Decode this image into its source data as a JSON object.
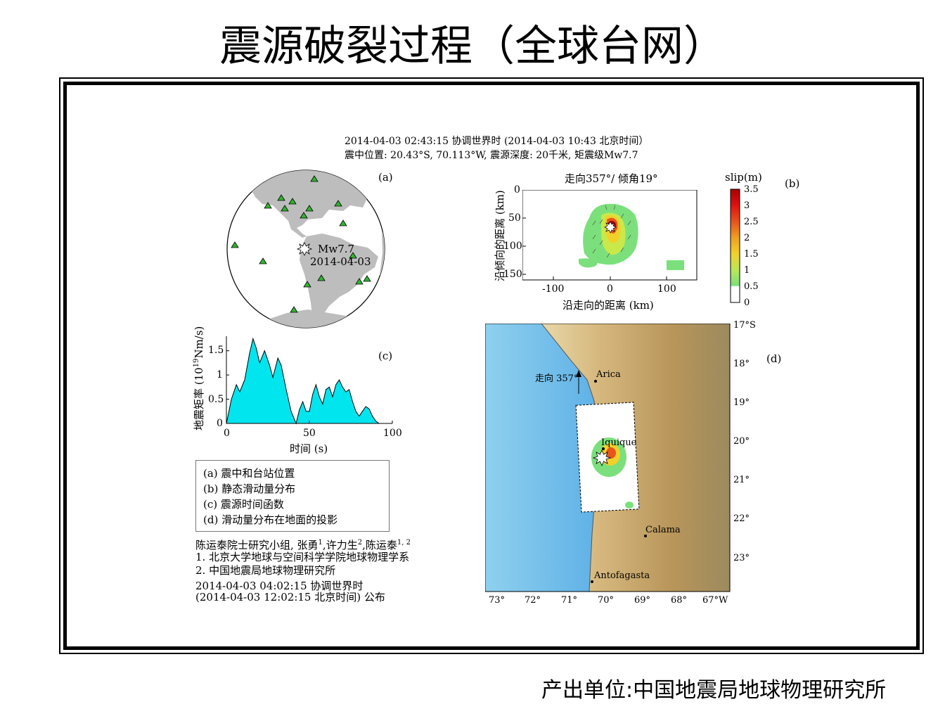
{
  "title": "震源破裂过程（全球台网）",
  "footer": "产出单位:中国地震局地球物理研究所",
  "header": {
    "line1": "2014-04-03 02:43:15 协调世界时 (2014-04-03 10:43 北京时间）",
    "line2": "震中位置: 20.43°S, 70.113°W, 震源深度: 20千米, 矩震级Mw7.7"
  },
  "panel_a": {
    "label": "(a)",
    "event_mag": "Mw7.7",
    "event_date": "2014-04-03",
    "colors": {
      "land": "#bdbdbd",
      "station": "#2fb52f"
    }
  },
  "panel_b": {
    "label": "(b)",
    "title": "走向357°/ 倾角19°",
    "colorbar_title": "slip(m)",
    "colorbar_ticks": [
      "3.5",
      "3",
      "2.5",
      "2",
      "1.5",
      "1",
      "0.5",
      "0"
    ],
    "xlabel": "沿走向的距离 (km)",
    "ylabel": "沿倾向的距离 (km)",
    "xticks": [
      "-100",
      "0",
      "100"
    ],
    "yticks": [
      "0",
      "50",
      "100",
      "150"
    ],
    "xlim": [
      -155,
      155
    ],
    "ylim": [
      0,
      160
    ],
    "colors": {
      "low": "#7be07b",
      "mid": "#f2d02a",
      "high": "#e8541c",
      "peak": "#a80000"
    }
  },
  "panel_c": {
    "label": "(c)",
    "xlabel": "时间 (s)",
    "ylabel": "地震矩率 (10",
    "ylabel_sup": "19",
    "ylabel_tail": "Nm/s)",
    "xticks": [
      "0",
      "50",
      "100"
    ],
    "yticks": [
      "0",
      "0.5",
      "1",
      "1.5"
    ],
    "fill_color": "#00e5ee"
  },
  "panel_d": {
    "label": "(d)",
    "strike_label": "走向 357°",
    "cities": [
      "Arica",
      "Iquique",
      "Calama",
      "Antofagasta"
    ],
    "lat_ticks": [
      "17°S",
      "18°",
      "19°",
      "20°",
      "21°",
      "22°",
      "23°"
    ],
    "lon_ticks": [
      "73°",
      "72°",
      "71°",
      "70°",
      "69°",
      "68°",
      "67°W"
    ]
  },
  "legend": [
    "(a) 震中和台站位置",
    "(b) 静态滑动量分布",
    "(c) 震源时间函数",
    "(d) 滑动量分布在地面的投影"
  ],
  "credits": {
    "line1_a": "陈运泰院士研究小组, 张勇",
    "sup1": "1",
    "line1_b": ",许力生",
    "sup2": "2",
    "line1_c": ",陈运泰",
    "sup3": "1, 2",
    "line2": "1. 北京大学地球与空间科学学院地球物理学系",
    "line3": "2. 中国地震局地球物理研究所",
    "line4": "2014-04-03 04:02:15 协调世界时",
    "line5": "(2014-04-03 12:02:15 北京时间)  公布"
  },
  "chart_data": [
    {
      "type": "area",
      "panel": "c",
      "x": [
        0,
        3,
        6,
        8,
        11,
        14,
        16,
        18,
        20,
        23,
        26,
        28,
        31,
        33,
        36,
        39,
        42,
        44,
        46,
        48,
        50,
        52,
        54,
        56,
        58,
        60,
        62,
        64,
        66,
        68,
        70,
        72,
        74,
        76,
        78,
        80,
        82,
        84,
        86,
        88,
        90,
        92
      ],
      "y": [
        0,
        0.5,
        0.8,
        0.65,
        0.9,
        1.45,
        1.75,
        1.55,
        1.25,
        1.5,
        1.2,
        0.95,
        1.35,
        1.2,
        0.7,
        0.25,
        0.0,
        0.28,
        0.45,
        0.25,
        0.25,
        0.6,
        0.8,
        0.55,
        0.4,
        0.7,
        0.75,
        0.55,
        0.8,
        0.9,
        0.75,
        0.65,
        0.7,
        0.45,
        0.25,
        0.15,
        0.25,
        0.35,
        0.3,
        0.15,
        0.05,
        0
      ],
      "xlabel": "时间 (s)",
      "xlim": [
        0,
        100
      ],
      "ylim": [
        0,
        1.8
      ]
    },
    {
      "type": "heatmap",
      "panel": "b",
      "title": "走向357°/ 倾角19°",
      "xlabel": "沿走向的距离 (km)",
      "ylabel": "沿倾向的距离 (km)",
      "xlim": [
        -155,
        155
      ],
      "ylim": [
        0,
        160
      ],
      "hypocenter": [
        0,
        70
      ],
      "peak_slip_m": 3.5,
      "colorbar_range": [
        0,
        3.5
      ]
    },
    {
      "type": "scatter",
      "panel": "a",
      "series": [
        {
          "name": "Mw7.7",
          "points": [
            [
              433,
              355
            ]
          ]
        }
      ]
    }
  ]
}
